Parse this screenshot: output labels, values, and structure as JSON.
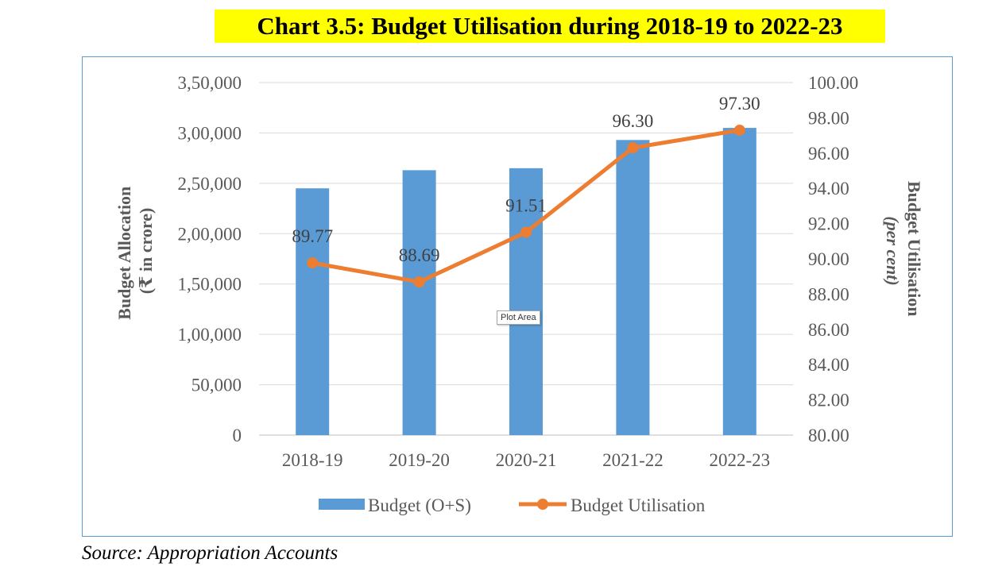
{
  "title": "Chart 3.5: Budget Utilisation during 2018-19 to 2022-23",
  "source": "Source: Appropriation Accounts",
  "tooltip": "Plot Area",
  "colors": {
    "bar": "#5b9bd5",
    "line": "#ed7d31",
    "border": "#5b9bd5",
    "title_bg": "#ffff00"
  },
  "chart_data": {
    "type": "bar",
    "categories": [
      "2018-19",
      "2019-20",
      "2020-21",
      "2021-22",
      "2022-23"
    ],
    "series": [
      {
        "name": "Budget (O+S)",
        "type": "bar",
        "axis": "left",
        "values": [
          245000,
          263000,
          265000,
          293000,
          305000
        ]
      },
      {
        "name": "Budget Utilisation",
        "type": "line",
        "axis": "right",
        "values": [
          89.77,
          88.69,
          91.51,
          96.3,
          97.3
        ],
        "labels": [
          "89.77",
          "88.69",
          "91.51",
          "96.30",
          "97.30"
        ]
      }
    ],
    "y_left": {
      "title_line1": "Budget Allocation",
      "title_line2": "(₹ in crore)",
      "range": [
        0,
        350000
      ],
      "ticks": [
        0,
        50000,
        100000,
        150000,
        200000,
        250000,
        300000,
        350000
      ],
      "tick_labels": [
        "0",
        "50,000",
        "1,00,000",
        "1,50,000",
        "2,00,000",
        "2,50,000",
        "3,00,000",
        "3,50,000"
      ]
    },
    "y_right": {
      "title_line1": "Budget Utilisation",
      "title_line2": "(per cent)",
      "range": [
        80,
        100
      ],
      "ticks": [
        80,
        82,
        84,
        86,
        88,
        90,
        92,
        94,
        96,
        98,
        100
      ],
      "tick_labels": [
        "80.00",
        "82.00",
        "84.00",
        "86.00",
        "88.00",
        "90.00",
        "92.00",
        "94.00",
        "96.00",
        "98.00",
        "100.00"
      ]
    },
    "grid": true,
    "legend": "bottom"
  }
}
